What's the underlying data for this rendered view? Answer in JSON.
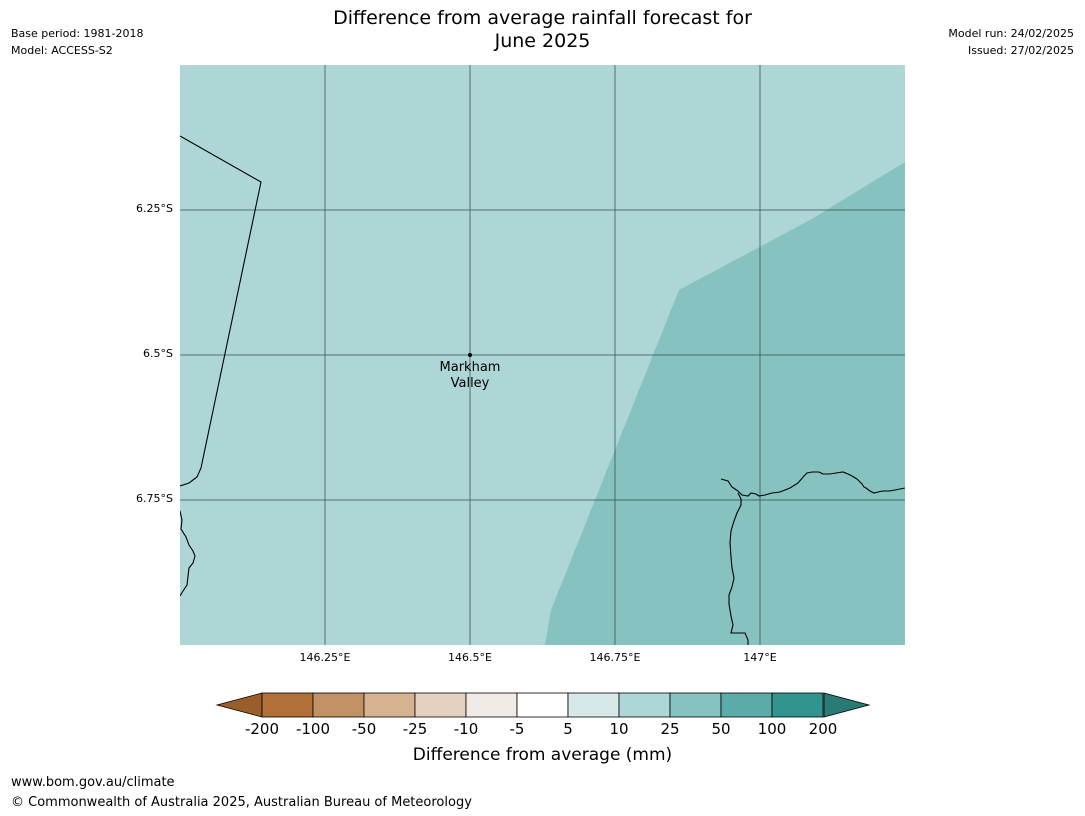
{
  "header": {
    "title_line1": "Difference from average rainfall forecast for",
    "title_line2": "June 2025",
    "base_period": "Base period: 1981-2018",
    "model": "Model: ACCESS-S2",
    "model_run": "Model run: 24/02/2025",
    "issued": "Issued: 27/02/2025"
  },
  "map": {
    "lat_labels": [
      "6.25°S",
      "6.5°S",
      "6.75°S"
    ],
    "lon_labels": [
      "146.25°E",
      "146.5°E",
      "146.75°E",
      "147°E"
    ],
    "place": {
      "name_line1": "Markham",
      "name_line2": "Valley"
    },
    "regions": [
      {
        "category": "10 to 25",
        "color": "#aed6d6"
      },
      {
        "category": "25 to 50",
        "color": "#86c2c0"
      }
    ]
  },
  "colorbar": {
    "title": "Difference from average (mm)",
    "tick_labels": [
      "-200",
      "-100",
      "-50",
      "-25",
      "-10",
      "-5",
      "5",
      "10",
      "25",
      "50",
      "100",
      "200"
    ],
    "colors": [
      "#9a5d2c",
      "#b07038",
      "#c29166",
      "#d6b28f",
      "#e5d1bf",
      "#f0ebe6",
      "#ffffff",
      "#d6e9e8",
      "#aed6d6",
      "#86c2c0",
      "#5aabaa",
      "#31948f",
      "#2a7b76"
    ]
  },
  "footer": {
    "url": "www.bom.gov.au/climate",
    "copyright": "© Commonwealth of Australia 2025, Australian Bureau of Meteorology"
  }
}
